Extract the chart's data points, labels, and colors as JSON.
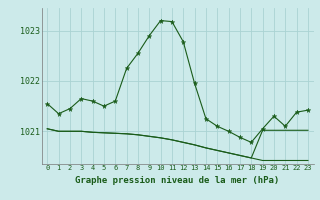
{
  "title": "Graphe pression niveau de la mer (hPa)",
  "background_color": "#cceaea",
  "grid_color": "#aad3d3",
  "line_color": "#1a5c1a",
  "hours": [
    0,
    1,
    2,
    3,
    4,
    5,
    6,
    7,
    8,
    9,
    10,
    11,
    12,
    13,
    14,
    15,
    16,
    17,
    18,
    19,
    20,
    21,
    22,
    23
  ],
  "line1": [
    1021.55,
    1021.35,
    1021.45,
    1021.65,
    1021.6,
    1021.5,
    1021.6,
    1022.25,
    1022.55,
    1022.9,
    1023.2,
    1023.18,
    1022.78,
    1021.95,
    1021.25,
    1021.1,
    1021.0,
    1020.88,
    1020.78,
    1021.05,
    1021.3,
    1021.1,
    1021.38,
    1021.42
  ],
  "line2": [
    1021.05,
    1021.0,
    1021.0,
    1021.0,
    1020.98,
    1020.97,
    1020.96,
    1020.95,
    1020.93,
    1020.9,
    1020.87,
    1020.83,
    1020.78,
    1020.73,
    1020.67,
    1020.62,
    1020.57,
    1020.52,
    1020.47,
    1020.42,
    1020.42,
    1020.42,
    1020.42,
    1020.42
  ],
  "line3": [
    1021.05,
    1021.0,
    1021.0,
    1021.0,
    1020.98,
    1020.97,
    1020.96,
    1020.95,
    1020.93,
    1020.9,
    1020.87,
    1020.83,
    1020.78,
    1020.73,
    1020.67,
    1020.62,
    1020.57,
    1020.52,
    1020.47,
    1021.02,
    1021.02,
    1021.02,
    1021.02,
    1021.02
  ],
  "ylim": [
    1020.35,
    1023.45
  ],
  "yticks": [
    1021,
    1022,
    1023
  ],
  "xlim": [
    -0.5,
    23.5
  ],
  "title_fontsize": 6.5
}
